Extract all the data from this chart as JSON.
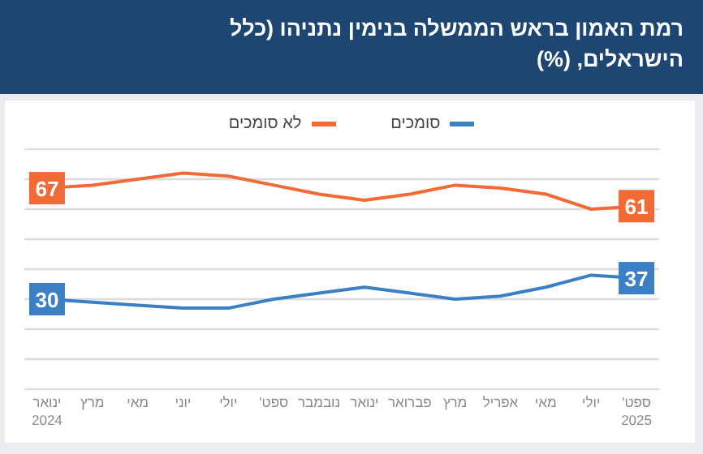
{
  "chart_data": {
    "type": "line",
    "title": "רמת האמון בראש הממשלה בנימין נתניהו (כלל הישראלים, (%)",
    "categories": [
      "ינואר 2024",
      "מרץ",
      "מאי",
      "יוני",
      "יולי",
      "ספט'",
      "נובמבר",
      "ינואר",
      "פברואר",
      "מרץ",
      "אפריל",
      "מאי",
      "יולי",
      "ספט' 2025"
    ],
    "series": [
      {
        "name": "סומכים",
        "color": "#3b7fc4",
        "values": [
          30,
          29,
          28,
          27,
          27,
          30,
          32,
          34,
          32,
          30,
          31,
          34,
          38,
          37
        ],
        "value_labels": [
          "30",
          null,
          null,
          null,
          null,
          null,
          null,
          null,
          null,
          null,
          null,
          null,
          null,
          "37"
        ]
      },
      {
        "name": "לא סומכים",
        "color": "#f26a36",
        "values": [
          67,
          68,
          70,
          72,
          71,
          68,
          65,
          63,
          65,
          68,
          67,
          65,
          60,
          61
        ],
        "value_labels": [
          "67",
          null,
          null,
          null,
          null,
          null,
          null,
          null,
          null,
          null,
          null,
          null,
          null,
          "61"
        ]
      }
    ],
    "ylim": [
      0,
      80
    ],
    "yticks": [
      {
        "value": 0,
        "label": null
      },
      {
        "value": 10,
        "label": null
      },
      {
        "value": 20,
        "label": null
      },
      {
        "value": 30,
        "label": null
      },
      {
        "value": 40,
        "label": null
      },
      {
        "value": 50,
        "label": null
      },
      {
        "value": 60,
        "label": null
      },
      {
        "value": 70,
        "label": null
      },
      {
        "value": 80,
        "label": null
      }
    ],
    "grid": "y",
    "legend": "top",
    "tick_labels": "x"
  }
}
